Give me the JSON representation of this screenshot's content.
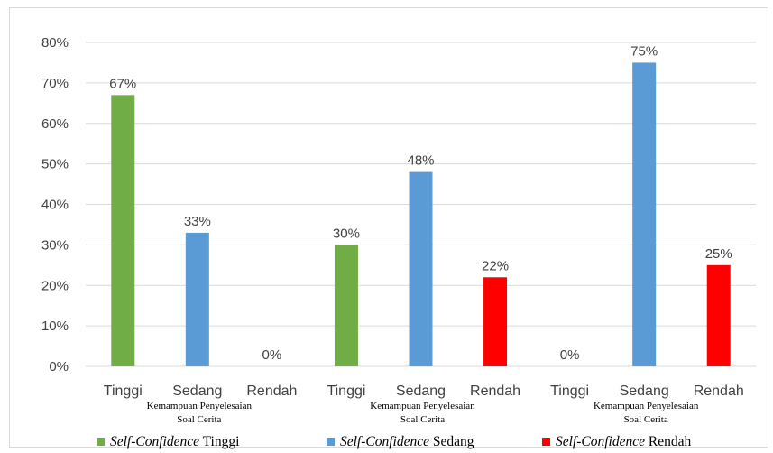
{
  "chart_data": {
    "type": "bar",
    "ylim": [
      0,
      80
    ],
    "yticks": [
      "0%",
      "10%",
      "20%",
      "30%",
      "40%",
      "50%",
      "60%",
      "70%",
      "80%"
    ],
    "grid": true,
    "legend_position": "bottom",
    "groups": [
      {
        "label_line1": "Kemampuan Penyelesaian",
        "label_line2": "Soal Cerita",
        "bars": [
          {
            "category": "Tinggi",
            "series": "tinggi",
            "value": 67,
            "label": "67%"
          },
          {
            "category": "Sedang",
            "series": "sedang",
            "value": 33,
            "label": "33%"
          },
          {
            "category": "Rendah",
            "series": "rendah",
            "value": 0,
            "label": "0%"
          }
        ]
      },
      {
        "label_line1": "Kemampuan Penyelesaian",
        "label_line2": "Soal Cerita",
        "bars": [
          {
            "category": "Tinggi",
            "series": "tinggi",
            "value": 30,
            "label": "30%"
          },
          {
            "category": "Sedang",
            "series": "sedang",
            "value": 48,
            "label": "48%"
          },
          {
            "category": "Rendah",
            "series": "rendah",
            "value": 22,
            "label": "22%"
          }
        ]
      },
      {
        "label_line1": "Kemampuan Penyelesaian",
        "label_line2": "Soal Cerita",
        "bars": [
          {
            "category": "Tinggi",
            "series": "tinggi",
            "value": 0,
            "label": "0%"
          },
          {
            "category": "Sedang",
            "series": "sedang",
            "value": 75,
            "label": "75%"
          },
          {
            "category": "Rendah",
            "series": "rendah",
            "value": 25,
            "label": "25%"
          }
        ]
      }
    ],
    "series": [
      {
        "key": "tinggi",
        "name_italic": "Self-Confidence",
        "name_plain": " Tinggi",
        "color": "#70ad47"
      },
      {
        "key": "sedang",
        "name_italic": "Self-Confidence",
        "name_plain": " Sedang",
        "color": "#5b9bd5"
      },
      {
        "key": "rendah",
        "name_italic": "Self-Confidence",
        "name_plain": " Rendah",
        "color": "#ff0000"
      }
    ],
    "gridline_color": "#d9d9d9"
  }
}
